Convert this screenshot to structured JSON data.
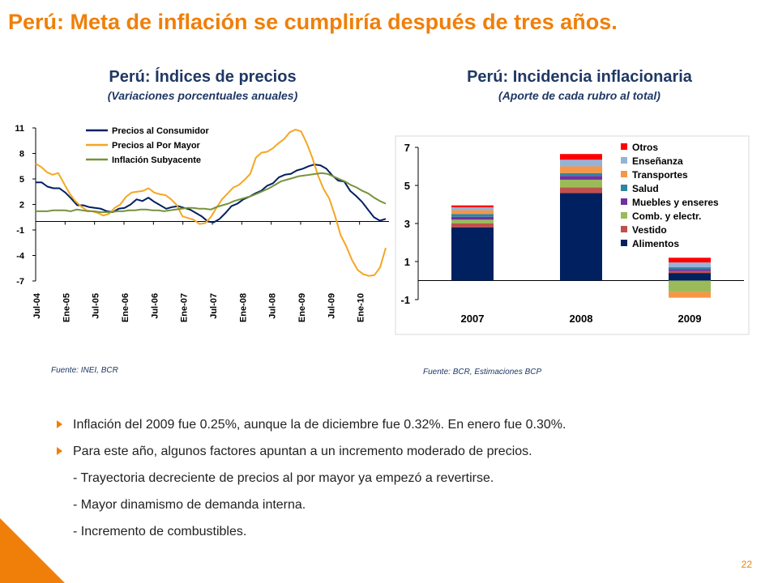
{
  "slide": {
    "title": "Perú: Meta de inflación se cumpliría después de tres años.",
    "page_number": "22",
    "accent_color": "#F07F09"
  },
  "left": {
    "title": "Perú: Índices de precios",
    "subtitle": "(Variaciones porcentuales anuales)",
    "source": "Fuente: INEI, BCR"
  },
  "right": {
    "title": "Perú: Incidencia inflacionaria",
    "subtitle": "(Aporte de cada rubro al total)",
    "source": "Fuente: BCR, Estimaciones BCP"
  },
  "bullets": [
    "Inflación del 2009 fue 0.25%, aunque la de diciembre fue 0.32%. En enero fue 0.30%.",
    "Para este año, algunos factores apuntan a un incremento moderado de precios."
  ],
  "sub_items": [
    "- Trayectoria decreciente de precios al por mayor ya empezó a revertirse.",
    "- Mayor dinamismo de demanda interna.",
    "- Incremento de combustibles."
  ],
  "chart_data": [
    {
      "type": "line",
      "ylim": [
        -7,
        11
      ],
      "yticks": [
        11,
        8,
        5,
        2,
        -1,
        -4,
        -7
      ],
      "x_tick_labels": [
        "Jul-04",
        "Ene-05",
        "Jul-05",
        "Ene-06",
        "Jul-06",
        "Ene-07",
        "Jul-07",
        "Ene-08",
        "Jul-08",
        "Ene-09",
        "Jul-09",
        "Ene-10"
      ],
      "grid": false,
      "legend": "top-left",
      "series": [
        {
          "name": "Precios al Consumidor",
          "color": "#002060",
          "values": [
            4.6,
            4.6,
            4.1,
            3.9,
            3.9,
            3.4,
            2.7,
            1.9,
            1.9,
            1.7,
            1.6,
            1.5,
            1.2,
            1.1,
            1.5,
            1.6,
            2.0,
            2.6,
            2.4,
            2.8,
            2.3,
            1.9,
            1.5,
            1.7,
            1.8,
            1.6,
            1.4,
            1.0,
            0.6,
            0.0,
            -0.1,
            0.3,
            1.0,
            1.8,
            2.1,
            2.6,
            2.9,
            3.3,
            3.6,
            4.2,
            4.5,
            5.2,
            5.5,
            5.6,
            6.0,
            6.2,
            6.5,
            6.7,
            6.6,
            6.2,
            5.4,
            4.8,
            4.7,
            3.6,
            3.0,
            2.3,
            1.4,
            0.5,
            0.1,
            0.3
          ]
        },
        {
          "name": "Precios al Por Mayor",
          "color": "#F5A623",
          "values": [
            6.8,
            6.4,
            5.8,
            5.5,
            5.7,
            4.5,
            3.3,
            2.4,
            1.8,
            1.3,
            1.2,
            1.0,
            0.7,
            0.9,
            1.6,
            2.0,
            2.9,
            3.4,
            3.5,
            3.6,
            3.9,
            3.4,
            3.2,
            3.1,
            2.6,
            1.9,
            0.6,
            0.4,
            0.2,
            -0.3,
            -0.2,
            0.5,
            1.6,
            2.6,
            3.3,
            4.0,
            4.3,
            4.9,
            5.6,
            7.5,
            8.1,
            8.2,
            8.6,
            9.2,
            9.7,
            10.5,
            10.8,
            10.6,
            9.2,
            7.5,
            5.4,
            3.8,
            2.7,
            0.7,
            -1.6,
            -2.9,
            -4.5,
            -5.7,
            -6.2,
            -6.4,
            -6.3,
            -5.4,
            -3.1
          ]
        },
        {
          "name": "Inflación Subyacente",
          "color": "#77933C",
          "values": [
            1.2,
            1.2,
            1.2,
            1.3,
            1.3,
            1.3,
            1.2,
            1.4,
            1.3,
            1.2,
            1.2,
            1.1,
            1.1,
            1.1,
            1.2,
            1.2,
            1.3,
            1.3,
            1.4,
            1.4,
            1.3,
            1.3,
            1.2,
            1.3,
            1.4,
            1.5,
            1.6,
            1.6,
            1.5,
            1.5,
            1.4,
            1.7,
            1.9,
            2.1,
            2.4,
            2.6,
            2.8,
            3.0,
            3.3,
            3.6,
            3.9,
            4.3,
            4.7,
            4.9,
            5.1,
            5.3,
            5.4,
            5.5,
            5.6,
            5.7,
            5.6,
            5.3,
            5.0,
            4.7,
            4.3,
            4.0,
            3.6,
            3.3,
            2.8,
            2.4,
            2.1
          ]
        }
      ]
    },
    {
      "type": "bar",
      "stacked": true,
      "categories": [
        "2007",
        "2008",
        "2009"
      ],
      "ylim": [
        -1,
        7
      ],
      "yticks": [
        7,
        5,
        3,
        1,
        -1
      ],
      "grid": false,
      "legend": "right",
      "series": [
        {
          "name": "Alimentos",
          "color": "#002060",
          "values": [
            2.8,
            4.6,
            0.4
          ]
        },
        {
          "name": "Vestido",
          "color": "#C0504D",
          "values": [
            0.2,
            0.3,
            0.1
          ]
        },
        {
          "name": "Comb. y electr.",
          "color": "#9BBB59",
          "values": [
            0.2,
            0.4,
            -0.6
          ]
        },
        {
          "name": "Muebles y enseres",
          "color": "#7030A0",
          "values": [
            0.15,
            0.2,
            0.1
          ]
        },
        {
          "name": "Salud",
          "color": "#31859C",
          "values": [
            0.15,
            0.15,
            0.1
          ]
        },
        {
          "name": "Transportes",
          "color": "#F79646",
          "values": [
            0.2,
            0.35,
            -0.3
          ]
        },
        {
          "name": "Enseñanza",
          "color": "#95B3D7",
          "values": [
            0.15,
            0.35,
            0.25
          ]
        },
        {
          "name": "Otros",
          "color": "#FF0000",
          "values": [
            0.1,
            0.3,
            0.25
          ]
        }
      ]
    }
  ]
}
